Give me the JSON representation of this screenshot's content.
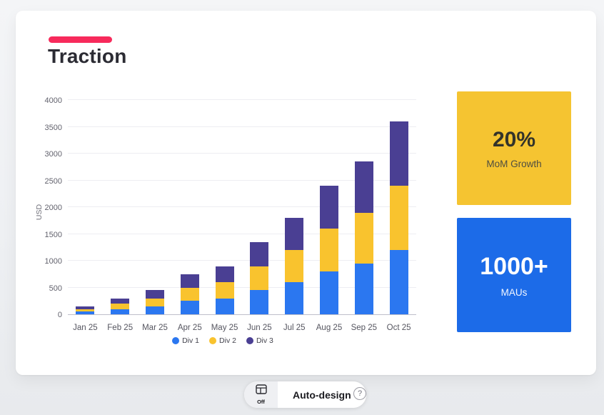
{
  "slide": {
    "heading": "Traction",
    "accent_color": "#f72a5b"
  },
  "chart_data": {
    "type": "bar",
    "stacked": true,
    "categories": [
      "Jan 25",
      "Feb 25",
      "Mar 25",
      "Apr 25",
      "May 25",
      "Jun 25",
      "Jul 25",
      "Aug 25",
      "Sep 25",
      "Oct 25"
    ],
    "series": [
      {
        "name": "Div 1",
        "color": "#2b77f0",
        "values": [
          50,
          100,
          150,
          250,
          300,
          450,
          600,
          800,
          950,
          1200
        ]
      },
      {
        "name": "Div 2",
        "color": "#f9c32e",
        "values": [
          50,
          100,
          150,
          250,
          300,
          450,
          600,
          800,
          950,
          1200
        ]
      },
      {
        "name": "Div 3",
        "color": "#4a3f93",
        "values": [
          50,
          100,
          150,
          250,
          300,
          450,
          600,
          800,
          950,
          1200
        ]
      }
    ],
    "totals": [
      150,
      300,
      450,
      750,
      900,
      1350,
      1800,
      2400,
      2850,
      3600
    ],
    "title": "",
    "xlabel": "",
    "ylabel": "USD",
    "ylim": [
      0,
      4000
    ],
    "ytick_step": 500,
    "grid": true,
    "legend_position": "bottom"
  },
  "stats": [
    {
      "value": "20%",
      "label": "MoM Growth",
      "bg": "#f5c431",
      "value_color": "#33332a",
      "label_color": "#4e4d41"
    },
    {
      "value": "1000+",
      "label": "MAUs",
      "bg": "#1c6be8",
      "value_color": "#ffffff",
      "label_color": "#f2f6ff"
    }
  ],
  "toolbar": {
    "auto_design_label": "Auto-design",
    "toggle_state": "Off",
    "help_label": "?"
  }
}
